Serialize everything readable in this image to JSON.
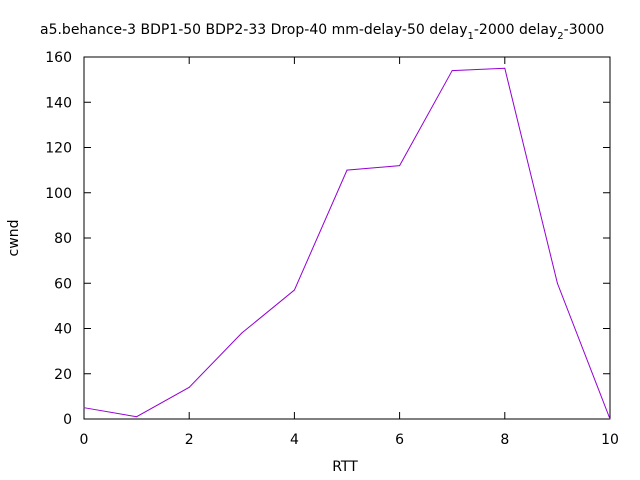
{
  "chart_data": {
    "type": "line",
    "title": {
      "main": "a5.behance-3 BDP1-50 BDP2-33 Drop-40 mm-delay-50 delay",
      "sub1": "1",
      "mid": "-2000 delay",
      "sub2": "2",
      "end": "-3000"
    },
    "xlabel": "RTT",
    "ylabel": "cwnd",
    "xlim": [
      0,
      10
    ],
    "ylim": [
      0,
      160
    ],
    "xticks": [
      0,
      2,
      4,
      6,
      8,
      10
    ],
    "yticks": [
      0,
      20,
      40,
      60,
      80,
      100,
      120,
      140,
      160
    ],
    "grid": false,
    "series": [
      {
        "color": "#9400d3",
        "x": [
          0,
          1,
          2,
          3,
          4,
          5,
          6,
          7,
          8,
          9,
          10
        ],
        "y": [
          5,
          1,
          14,
          38,
          57,
          110,
          112,
          154,
          155,
          60,
          0
        ]
      }
    ]
  }
}
